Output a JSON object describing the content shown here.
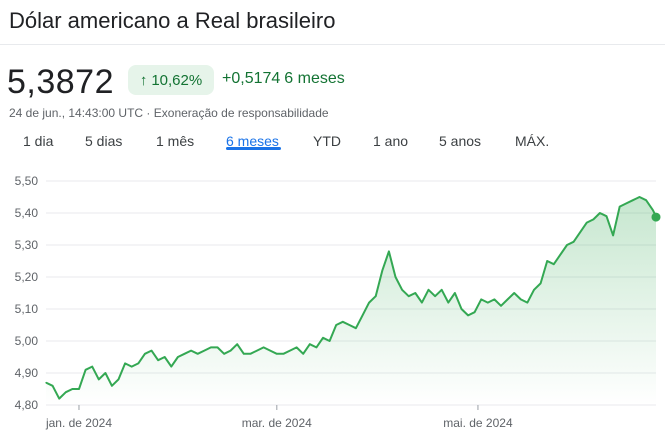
{
  "header": {
    "title": "Dólar americano a Real brasileiro",
    "price": "5,3872",
    "pct_arrow_icon": "arrow-up-icon",
    "pct_change": "10,62%",
    "abs_change": "+0,5174",
    "period_label": "6 meses",
    "timestamp": "24 de jun., 14:43:00 UTC",
    "separator": " · ",
    "disclaimer": "Exoneração de responsabilidade"
  },
  "tabs": [
    {
      "label": "1 dia"
    },
    {
      "label": "5 dias"
    },
    {
      "label": "1 mês"
    },
    {
      "label": "6 meses",
      "active": true
    },
    {
      "label": "YTD"
    },
    {
      "label": "1 ano"
    },
    {
      "label": "5 anos"
    },
    {
      "label": "MÁX."
    }
  ],
  "colors": {
    "line": "#34a853",
    "fill_top": "#34a853",
    "grid": "#e8eaed",
    "active_tab": "#1a73e8",
    "positive": "#137333"
  },
  "chart_data": {
    "type": "area",
    "title": "",
    "xlabel": "",
    "ylabel": "",
    "ylim": [
      4.8,
      5.5
    ],
    "yticks": [
      "5,50",
      "5,40",
      "5,30",
      "5,20",
      "5,10",
      "5,00",
      "4,90",
      "4,80"
    ],
    "ytick_values": [
      5.5,
      5.4,
      5.3,
      5.2,
      5.1,
      5.0,
      4.9,
      4.8
    ],
    "xticks": [
      "jan. de 2024",
      "mar. de 2024",
      "mai. de 2024"
    ],
    "xtick_dates": [
      "2024-01-01",
      "2024-03-01",
      "2024-05-01"
    ],
    "xlim": [
      "2023-12-22",
      "2024-06-24"
    ],
    "grid": true,
    "series": [
      {
        "x": [
          "2023-12-22",
          "2023-12-24",
          "2023-12-26",
          "2023-12-28",
          "2023-12-30",
          "2024-01-01",
          "2024-01-03",
          "2024-01-05",
          "2024-01-07",
          "2024-01-09",
          "2024-01-11",
          "2024-01-13",
          "2024-01-15",
          "2024-01-17",
          "2024-01-19",
          "2024-01-21",
          "2024-01-23",
          "2024-01-25",
          "2024-01-27",
          "2024-01-29",
          "2024-01-31",
          "2024-02-02",
          "2024-02-04",
          "2024-02-06",
          "2024-02-08",
          "2024-02-10",
          "2024-02-12",
          "2024-02-14",
          "2024-02-16",
          "2024-02-18",
          "2024-02-20",
          "2024-02-22",
          "2024-02-24",
          "2024-02-26",
          "2024-02-28",
          "2024-03-01",
          "2024-03-03",
          "2024-03-05",
          "2024-03-07",
          "2024-03-09",
          "2024-03-11",
          "2024-03-13",
          "2024-03-15",
          "2024-03-17",
          "2024-03-19",
          "2024-03-21",
          "2024-03-23",
          "2024-03-25",
          "2024-03-27",
          "2024-03-29",
          "2024-03-31",
          "2024-04-02",
          "2024-04-04",
          "2024-04-06",
          "2024-04-08",
          "2024-04-10",
          "2024-04-12",
          "2024-04-14",
          "2024-04-16",
          "2024-04-18",
          "2024-04-20",
          "2024-04-22",
          "2024-04-24",
          "2024-04-26",
          "2024-04-28",
          "2024-04-30",
          "2024-05-02",
          "2024-05-04",
          "2024-05-06",
          "2024-05-08",
          "2024-05-10",
          "2024-05-12",
          "2024-05-14",
          "2024-05-16",
          "2024-05-18",
          "2024-05-20",
          "2024-05-22",
          "2024-05-24",
          "2024-05-26",
          "2024-05-28",
          "2024-05-30",
          "2024-06-01",
          "2024-06-03",
          "2024-06-05",
          "2024-06-07",
          "2024-06-09",
          "2024-06-11",
          "2024-06-13",
          "2024-06-15",
          "2024-06-17",
          "2024-06-19",
          "2024-06-21",
          "2024-06-23",
          "2024-06-24"
        ],
        "values": [
          4.87,
          4.86,
          4.82,
          4.84,
          4.85,
          4.85,
          4.91,
          4.92,
          4.88,
          4.9,
          4.86,
          4.88,
          4.93,
          4.92,
          4.93,
          4.96,
          4.97,
          4.94,
          4.95,
          4.92,
          4.95,
          4.96,
          4.97,
          4.96,
          4.97,
          4.98,
          4.98,
          4.96,
          4.97,
          4.99,
          4.96,
          4.96,
          4.97,
          4.98,
          4.97,
          4.96,
          4.96,
          4.97,
          4.98,
          4.96,
          4.99,
          4.98,
          5.01,
          5.0,
          5.05,
          5.06,
          5.05,
          5.04,
          5.08,
          5.12,
          5.14,
          5.22,
          5.28,
          5.2,
          5.16,
          5.14,
          5.15,
          5.12,
          5.16,
          5.14,
          5.16,
          5.12,
          5.15,
          5.1,
          5.08,
          5.09,
          5.13,
          5.12,
          5.13,
          5.11,
          5.13,
          5.15,
          5.13,
          5.12,
          5.16,
          5.18,
          5.25,
          5.24,
          5.27,
          5.3,
          5.31,
          5.34,
          5.37,
          5.38,
          5.4,
          5.39,
          5.33,
          5.42,
          5.43,
          5.44,
          5.45,
          5.44,
          5.41,
          5.39
        ]
      }
    ],
    "last_point": {
      "x": "2024-06-24",
      "value": 5.3872
    }
  }
}
